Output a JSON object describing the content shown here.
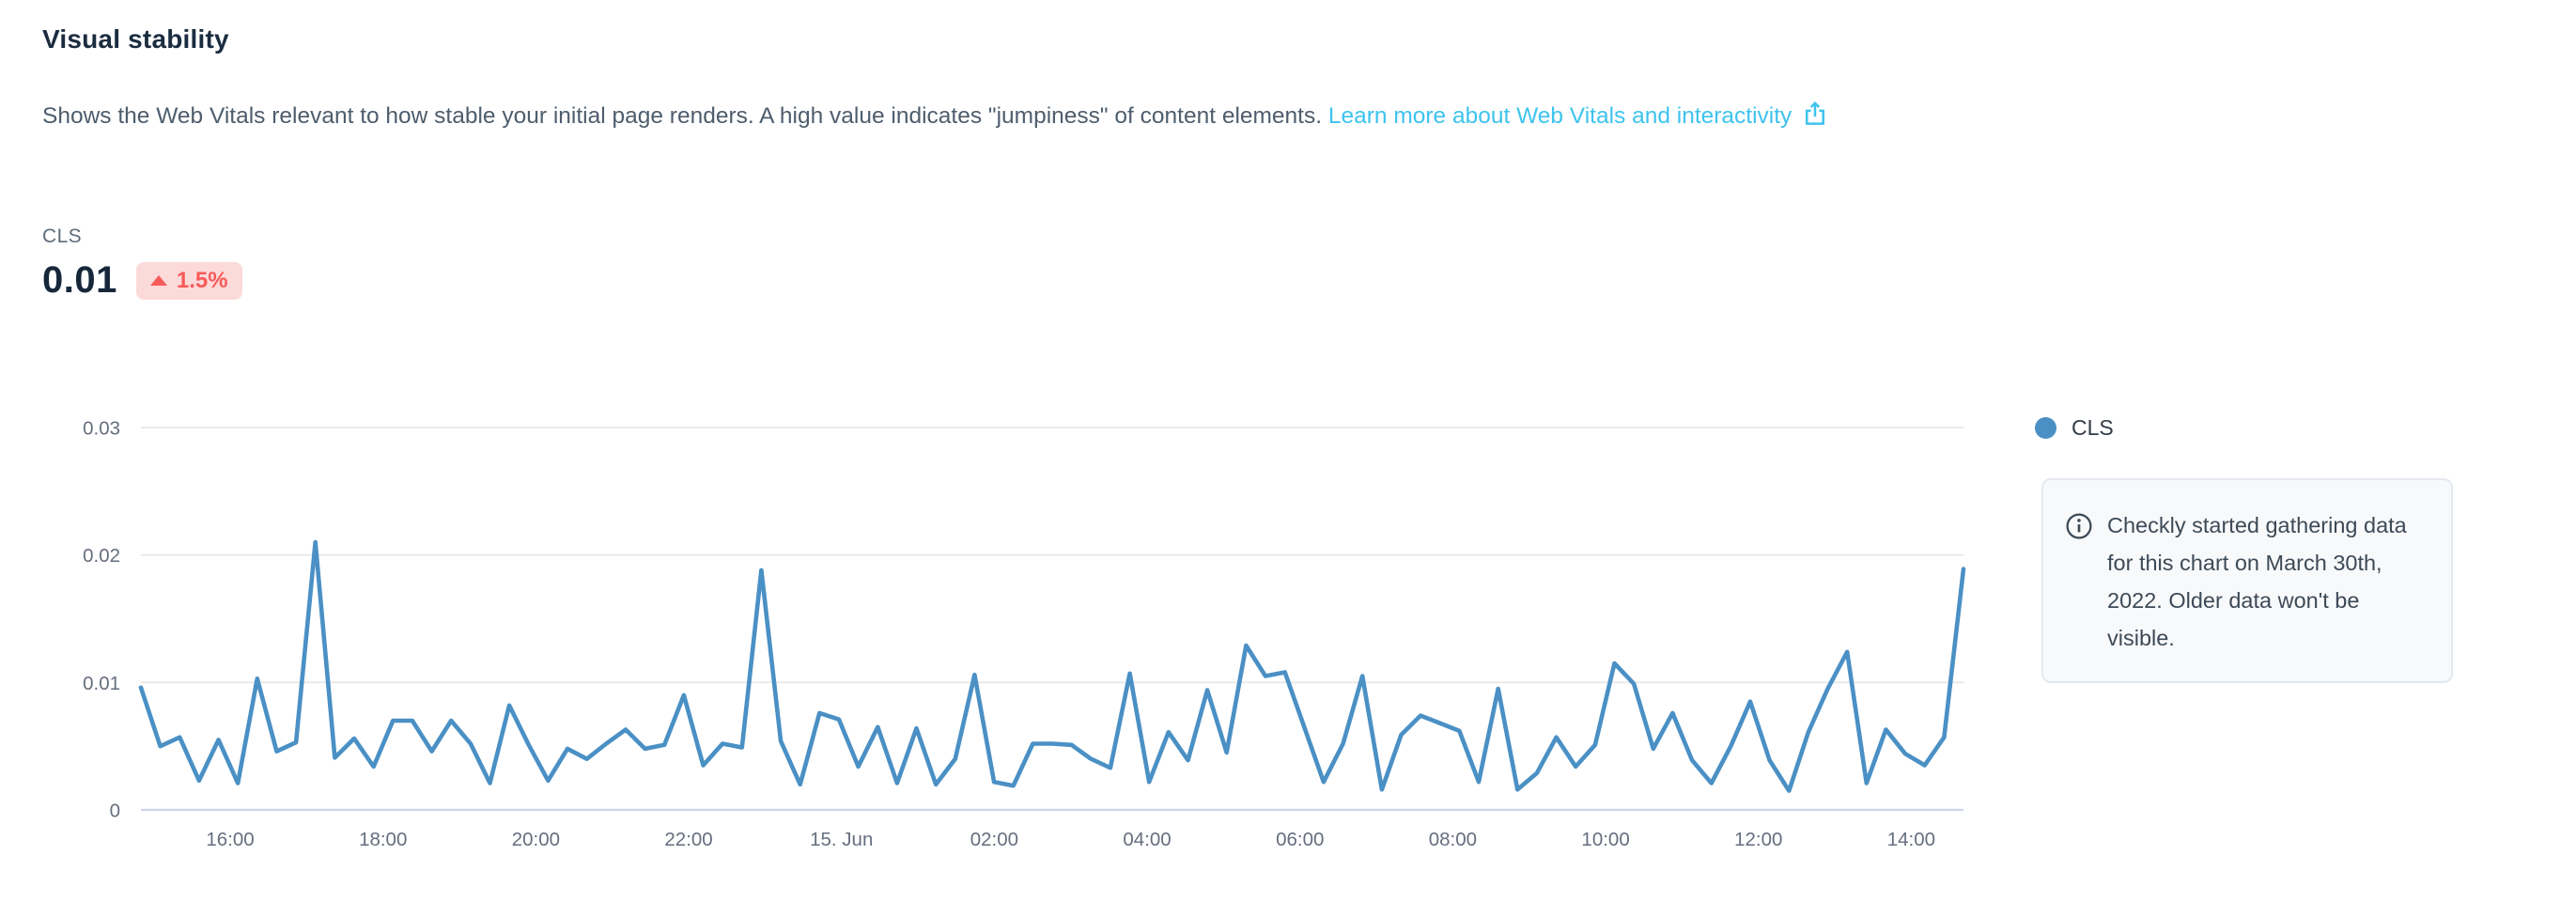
{
  "panel": {
    "title": "Visual stability",
    "description": "Shows the Web Vitals relevant to how stable your initial page renders. A high value indicates \"jumpiness\" of content elements. ",
    "link_text": "Learn more about Web Vitals and interactivity",
    "metric": {
      "label": "CLS",
      "value": "0.01",
      "delta": "1.5%",
      "delta_direction": "up"
    },
    "legend": {
      "label": "CLS"
    },
    "info_note": "Checkly started gathering data for this chart on March 30th, 2022. Older data won't be visible."
  },
  "colors": {
    "series_line": "#4a90c5",
    "link": "#3ec3ee",
    "badge_bg": "#fcdada",
    "badge_text": "#f85a5a",
    "gridline": "#e6e6e6",
    "axis_line": "#ccd6eb",
    "axis_label": "#666e7e",
    "title_text": "#1b2c40",
    "body_text": "#4e5d6d",
    "note_bg": "#f8f9fb",
    "note_border": "#e4e9ef"
  },
  "chart_data": {
    "type": "line",
    "title": "",
    "xlabel": "",
    "ylabel": "",
    "ylim": [
      0,
      0.032
    ],
    "grid": true,
    "legend_position": "right",
    "y_ticks": [
      0,
      0.01,
      0.02,
      0.03
    ],
    "y_tick_labels": [
      "0",
      "0.01",
      "0.02",
      "0.03"
    ],
    "x_ticks": [
      "16:00",
      "18:00",
      "20:00",
      "22:00",
      "15. Jun",
      "02:00",
      "04:00",
      "06:00",
      "08:00",
      "10:00",
      "12:00",
      "14:00"
    ],
    "x_interval_minutes": 15,
    "series": [
      {
        "name": "CLS",
        "color": "#4a90c5",
        "values": [
          0.0096,
          0.005,
          0.0057,
          0.0023,
          0.0055,
          0.0021,
          0.0103,
          0.0046,
          0.0053,
          0.021,
          0.0041,
          0.0056,
          0.0034,
          0.007,
          0.007,
          0.0046,
          0.007,
          0.0052,
          0.0021,
          0.0082,
          0.0051,
          0.0023,
          0.0048,
          0.004,
          0.0052,
          0.0063,
          0.0048,
          0.0051,
          0.009,
          0.0035,
          0.0052,
          0.0049,
          0.0188,
          0.0054,
          0.002,
          0.0076,
          0.0071,
          0.0034,
          0.0065,
          0.0021,
          0.0064,
          0.002,
          0.004,
          0.0106,
          0.0022,
          0.0019,
          0.0052,
          0.0052,
          0.0051,
          0.004,
          0.0033,
          0.0107,
          0.0022,
          0.0061,
          0.0039,
          0.0094,
          0.0045,
          0.0129,
          0.0105,
          0.0108,
          0.0065,
          0.0022,
          0.0052,
          0.0105,
          0.0016,
          0.0059,
          0.0074,
          0.0068,
          0.0062,
          0.0022,
          0.0095,
          0.0016,
          0.0029,
          0.0057,
          0.0034,
          0.0051,
          0.0115,
          0.0099,
          0.0048,
          0.0076,
          0.0039,
          0.0021,
          0.005,
          0.0085,
          0.0039,
          0.0015,
          0.0061,
          0.0095,
          0.0124,
          0.0021,
          0.0063,
          0.0044,
          0.0035,
          0.0057,
          0.0189
        ]
      }
    ]
  }
}
